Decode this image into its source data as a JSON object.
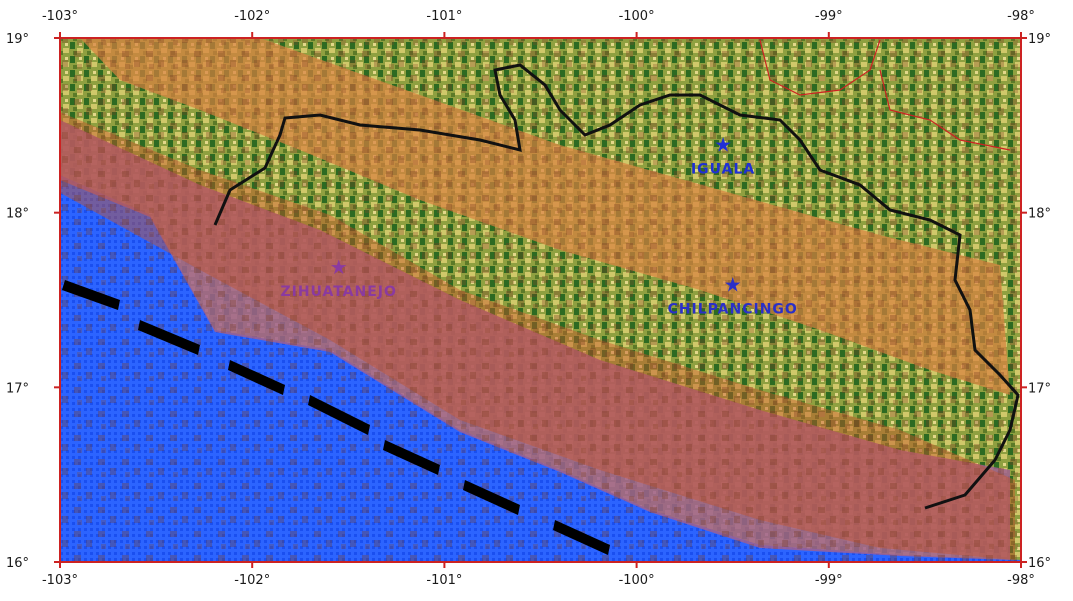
{
  "map": {
    "longitude_ticks": [
      "-103°",
      "-102°",
      "-101°",
      "-100°",
      "-99°",
      "-98°"
    ],
    "latitude_ticks": [
      "19°",
      "18°",
      "17°",
      "16°"
    ],
    "cities": [
      {
        "name": "IGUALA",
        "lon": -99.55,
        "lat": 18.35,
        "color": "#1f2fd6"
      },
      {
        "name": "CHILPANCINGO",
        "lon": -99.5,
        "lat": 17.55,
        "color": "#2a2fc8"
      },
      {
        "name": "ZIHUATANEJO",
        "lon": -101.55,
        "lat": 17.65,
        "color": "#8a3aa0"
      }
    ],
    "colors": {
      "ocean": "#1f5bff",
      "land_dark": "#1e5a1e",
      "land_light": "#c8c860",
      "orange_zone": "#d98040",
      "coastal_zone": "#a06090",
      "state_border": "#111111",
      "frame": "#cc2222"
    }
  }
}
